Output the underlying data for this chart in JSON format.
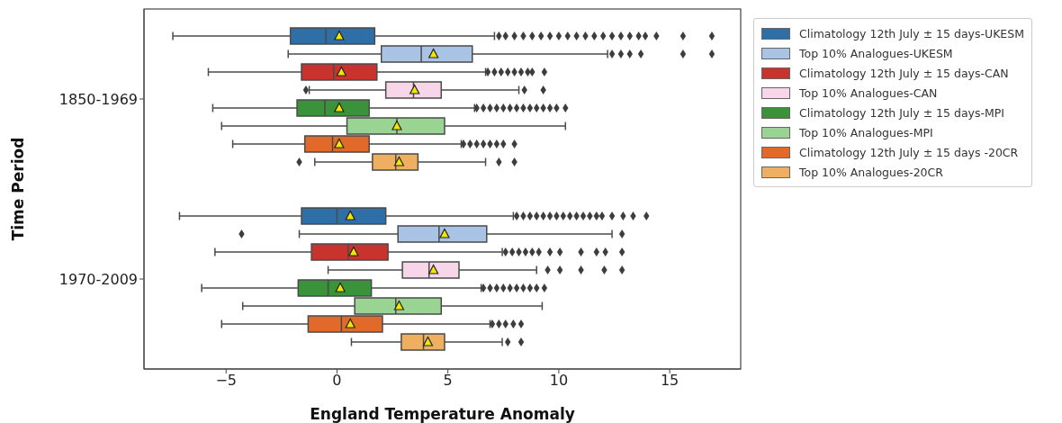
{
  "chart_data": {
    "type": "box",
    "orientation": "horizontal",
    "xlabel": "England Temperature Anomaly",
    "ylabel": "Time Period",
    "categories": [
      "1850-1969",
      "1970-2009"
    ],
    "xlim": [
      -8.7,
      18.2
    ],
    "xticks": [
      {
        "value": -5,
        "label": "−5"
      },
      0,
      5,
      10,
      15
    ],
    "legend": "top right",
    "series": [
      {
        "name": "Climatology 12th July ± 15 days-UKESM",
        "color": "#2f6fa8",
        "boxes": [
          {
            "low": -7.4,
            "q1": -2.1,
            "median": -0.5,
            "q3": 1.7,
            "high": 7.1,
            "mean": 0.1,
            "outliers": [
              7.3,
              7.6,
              8.0,
              8.4,
              8.8,
              9.2,
              9.6,
              10.0,
              10.4,
              10.8,
              11.2,
              11.6,
              12.0,
              12.4,
              12.8,
              13.2,
              13.6,
              13.9,
              14.4,
              15.6,
              16.9
            ]
          },
          {
            "low": -7.1,
            "q1": -1.6,
            "median": 0.0,
            "q3": 2.2,
            "high": 7.95,
            "mean": 0.6,
            "outliers": [
              8.1,
              8.4,
              8.7,
              9.0,
              9.3,
              9.6,
              9.9,
              10.2,
              10.5,
              10.8,
              11.1,
              11.4,
              11.7,
              11.95,
              12.4,
              12.9,
              13.35,
              13.95
            ]
          }
        ]
      },
      {
        "name": "Top 10% Analogues-UKESM",
        "color": "#a9c3e5",
        "boxes": [
          {
            "low": -2.2,
            "q1": 2.0,
            "median": 3.8,
            "q3": 6.1,
            "high": 12.2,
            "mean": 4.35,
            "outliers": [
              12.4,
              12.8,
              13.2,
              13.7,
              15.6,
              16.9
            ]
          },
          {
            "low": -1.7,
            "q1": 2.75,
            "median": 4.6,
            "q3": 6.75,
            "high": 12.4,
            "mean": 4.85,
            "outliers": [
              -4.3,
              12.85
            ]
          }
        ]
      },
      {
        "name": "Climatology 12th July ± 15 days-CAN",
        "color": "#c9332e",
        "boxes": [
          {
            "low": -5.8,
            "q1": -1.6,
            "median": -0.15,
            "q3": 1.8,
            "high": 6.7,
            "mean": 0.2,
            "outliers": [
              6.8,
              7.1,
              7.4,
              7.7,
              8.0,
              8.3,
              8.6,
              8.8,
              9.35
            ]
          },
          {
            "low": -5.5,
            "q1": -1.15,
            "median": 0.5,
            "q3": 2.3,
            "high": 7.45,
            "mean": 0.75,
            "outliers": [
              7.6,
              7.9,
              8.2,
              8.5,
              8.8,
              9.1,
              9.6,
              10.05,
              11.0,
              11.7,
              12.1,
              12.85
            ]
          }
        ]
      },
      {
        "name": "Top 10% Analogues-CAN",
        "color": "#f6d6e8",
        "boxes": [
          {
            "low": -1.25,
            "q1": 2.2,
            "median": 3.45,
            "q3": 4.7,
            "high": 8.2,
            "mean": 3.5,
            "outliers": [
              -1.4,
              8.45,
              9.3
            ]
          },
          {
            "low": -0.4,
            "q1": 2.95,
            "median": 4.15,
            "q3": 5.5,
            "high": 9.0,
            "mean": 4.35,
            "outliers": [
              9.5,
              10.05,
              11.0,
              12.05,
              12.85
            ]
          }
        ]
      },
      {
        "name": "Climatology 12th July ± 15 days-MPI",
        "color": "#3a923a",
        "boxes": [
          {
            "low": -5.6,
            "q1": -1.8,
            "median": -0.55,
            "q3": 1.45,
            "high": 6.2,
            "mean": 0.1,
            "outliers": [
              6.3,
              6.6,
              6.9,
              7.2,
              7.5,
              7.8,
              8.1,
              8.4,
              8.7,
              9.0,
              9.3,
              9.6,
              9.9,
              10.3
            ]
          },
          {
            "low": -6.1,
            "q1": -1.75,
            "median": -0.4,
            "q3": 1.55,
            "high": 6.5,
            "mean": 0.15,
            "outliers": [
              6.6,
              6.9,
              7.2,
              7.5,
              7.8,
              8.1,
              8.4,
              8.7,
              9.0,
              9.35
            ]
          }
        ]
      },
      {
        "name": "Top 10% Analogues-MPI",
        "color": "#9ad492",
        "boxes": [
          {
            "low": -5.2,
            "q1": 0.45,
            "median": 2.7,
            "q3": 4.85,
            "high": 10.3,
            "mean": 2.7
          },
          {
            "low": -4.25,
            "q1": 0.8,
            "median": 2.65,
            "q3": 4.7,
            "high": 9.25,
            "mean": 2.8
          }
        ]
      },
      {
        "name": "Climatology 12th July ± 15 days -20CR",
        "color": "#e1692a",
        "boxes": [
          {
            "low": -4.7,
            "q1": -1.45,
            "median": -0.2,
            "q3": 1.45,
            "high": 5.6,
            "mean": 0.1,
            "outliers": [
              5.7,
              6.0,
              6.3,
              6.6,
              6.9,
              7.2,
              7.5,
              8.0
            ]
          },
          {
            "low": -5.2,
            "q1": -1.3,
            "median": 0.2,
            "q3": 2.05,
            "high": 6.9,
            "mean": 0.6,
            "outliers": [
              7.0,
              7.3,
              7.6,
              7.95,
              8.3
            ]
          }
        ]
      },
      {
        "name": "Top 10% Analogues-20CR",
        "color": "#eeb060",
        "boxes": [
          {
            "low": -1.0,
            "q1": 1.6,
            "median": 2.65,
            "q3": 3.65,
            "high": 6.7,
            "mean": 2.8,
            "outliers": [
              -1.7,
              7.3,
              8.0
            ]
          },
          {
            "low": 0.65,
            "q1": 2.9,
            "median": 3.9,
            "q3": 4.85,
            "high": 7.45,
            "mean": 4.1,
            "outliers": [
              7.7,
              8.3
            ]
          }
        ]
      }
    ]
  }
}
